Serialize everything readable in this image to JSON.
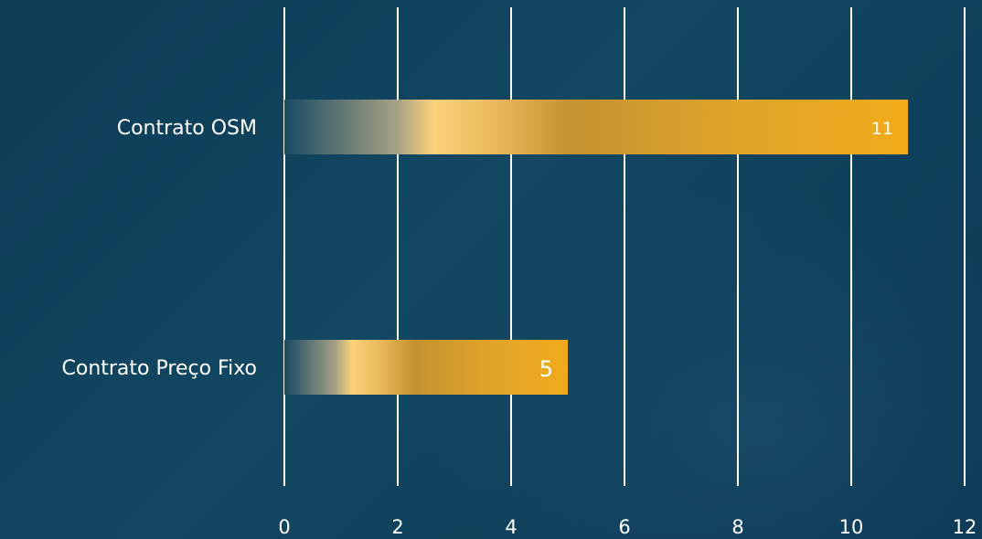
{
  "chart_data": {
    "type": "bar",
    "orientation": "horizontal",
    "categories": [
      "Contrato OSM",
      "Contrato Preço Fixo"
    ],
    "values": [
      11,
      5
    ],
    "data_labels": [
      "11",
      "5"
    ],
    "xlim": [
      0,
      12
    ],
    "x_ticks": [
      0,
      2,
      4,
      6,
      8,
      10,
      12
    ],
    "grid": "vertical",
    "legend": "none",
    "colors": {
      "bar_start": "#1a4a63",
      "bar_light": "#fbd27a",
      "bar_mid": "#c4922e",
      "bar_end": "#f0ab1a",
      "grid": "#ffffff",
      "text": "#ffffff"
    }
  }
}
